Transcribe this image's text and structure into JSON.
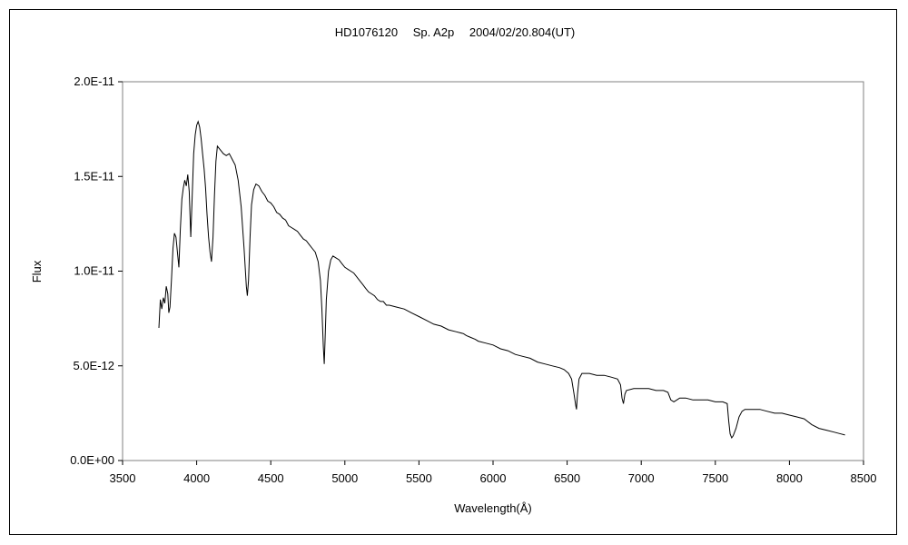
{
  "chart_data": {
    "type": "line",
    "title": "HD1076120　 Sp. A2p　 2004/02/20.804(UT)",
    "xlabel": "Wavelength(Å)",
    "ylabel": "Flux",
    "xlim": [
      3500,
      8500
    ],
    "ylim": [
      0,
      2e-11
    ],
    "x_ticks": [
      3500,
      4000,
      4500,
      5000,
      5500,
      6000,
      6500,
      7000,
      7500,
      8000,
      8500
    ],
    "x_tick_labels": [
      "3500",
      "4000",
      "4500",
      "5000",
      "5500",
      "6000",
      "6500",
      "7000",
      "7500",
      "8000",
      "8500"
    ],
    "y_ticks": [
      0,
      5e-12,
      1e-11,
      1.5e-11,
      2e-11
    ],
    "y_tick_labels": [
      "0.0E+00",
      "5.0E-12",
      "1.0E-11",
      "1.5E-11",
      "2.0E-11"
    ],
    "grid": false,
    "legend": "none",
    "series": [
      {
        "color": "#000000",
        "points": [
          [
            3745,
            7e-12
          ],
          [
            3755,
            8.5e-12
          ],
          [
            3765,
            8e-12
          ],
          [
            3775,
            8.6e-12
          ],
          [
            3785,
            8.3e-12
          ],
          [
            3795,
            9.2e-12
          ],
          [
            3805,
            8.8e-12
          ],
          [
            3812,
            7.8e-12
          ],
          [
            3820,
            8.1e-12
          ],
          [
            3830,
            9.6e-12
          ],
          [
            3840,
            1.12e-11
          ],
          [
            3850,
            1.2e-11
          ],
          [
            3860,
            1.18e-11
          ],
          [
            3870,
            1.1e-11
          ],
          [
            3880,
            1.02e-11
          ],
          [
            3890,
            1.22e-11
          ],
          [
            3900,
            1.38e-11
          ],
          [
            3910,
            1.44e-11
          ],
          [
            3920,
            1.48e-11
          ],
          [
            3930,
            1.45e-11
          ],
          [
            3940,
            1.51e-11
          ],
          [
            3950,
            1.42e-11
          ],
          [
            3960,
            1.18e-11
          ],
          [
            3970,
            1.4e-11
          ],
          [
            3980,
            1.62e-11
          ],
          [
            3990,
            1.72e-11
          ],
          [
            4000,
            1.77e-11
          ],
          [
            4010,
            1.79e-11
          ],
          [
            4020,
            1.76e-11
          ],
          [
            4030,
            1.7e-11
          ],
          [
            4040,
            1.62e-11
          ],
          [
            4050,
            1.54e-11
          ],
          [
            4060,
            1.44e-11
          ],
          [
            4070,
            1.3e-11
          ],
          [
            4080,
            1.18e-11
          ],
          [
            4090,
            1.1e-11
          ],
          [
            4100,
            1.05e-11
          ],
          [
            4110,
            1.18e-11
          ],
          [
            4120,
            1.4e-11
          ],
          [
            4130,
            1.58e-11
          ],
          [
            4140,
            1.66e-11
          ],
          [
            4160,
            1.64e-11
          ],
          [
            4180,
            1.62e-11
          ],
          [
            4200,
            1.61e-11
          ],
          [
            4220,
            1.62e-11
          ],
          [
            4240,
            1.59e-11
          ],
          [
            4260,
            1.56e-11
          ],
          [
            4280,
            1.48e-11
          ],
          [
            4300,
            1.34e-11
          ],
          [
            4320,
            1.12e-11
          ],
          [
            4335,
            9.2e-12
          ],
          [
            4342,
            8.7e-12
          ],
          [
            4350,
            9.5e-12
          ],
          [
            4360,
            1.18e-11
          ],
          [
            4370,
            1.35e-11
          ],
          [
            4385,
            1.43e-11
          ],
          [
            4400,
            1.46e-11
          ],
          [
            4420,
            1.45e-11
          ],
          [
            4440,
            1.42e-11
          ],
          [
            4460,
            1.4e-11
          ],
          [
            4480,
            1.37e-11
          ],
          [
            4500,
            1.36e-11
          ],
          [
            4520,
            1.34e-11
          ],
          [
            4540,
            1.31e-11
          ],
          [
            4560,
            1.3e-11
          ],
          [
            4580,
            1.28e-11
          ],
          [
            4600,
            1.27e-11
          ],
          [
            4620,
            1.24e-11
          ],
          [
            4640,
            1.23e-11
          ],
          [
            4660,
            1.22e-11
          ],
          [
            4680,
            1.21e-11
          ],
          [
            4700,
            1.19e-11
          ],
          [
            4720,
            1.17e-11
          ],
          [
            4740,
            1.16e-11
          ],
          [
            4760,
            1.14e-11
          ],
          [
            4780,
            1.12e-11
          ],
          [
            4800,
            1.1e-11
          ],
          [
            4820,
            1.05e-11
          ],
          [
            4835,
            9.5e-12
          ],
          [
            4845,
            8e-12
          ],
          [
            4855,
            6e-12
          ],
          [
            4861,
            5.1e-12
          ],
          [
            4866,
            6.2e-12
          ],
          [
            4875,
            8.5e-12
          ],
          [
            4890,
            1e-11
          ],
          [
            4905,
            1.06e-11
          ],
          [
            4920,
            1.08e-11
          ],
          [
            4940,
            1.07e-11
          ],
          [
            4960,
            1.06e-11
          ],
          [
            4980,
            1.04e-11
          ],
          [
            5000,
            1.02e-11
          ],
          [
            5020,
            1.01e-11
          ],
          [
            5040,
            1e-11
          ],
          [
            5060,
            9.9e-12
          ],
          [
            5080,
            9.7e-12
          ],
          [
            5100,
            9.5e-12
          ],
          [
            5120,
            9.3e-12
          ],
          [
            5140,
            9.1e-12
          ],
          [
            5160,
            8.9e-12
          ],
          [
            5180,
            8.8e-12
          ],
          [
            5200,
            8.7e-12
          ],
          [
            5220,
            8.5e-12
          ],
          [
            5240,
            8.4e-12
          ],
          [
            5260,
            8.4e-12
          ],
          [
            5280,
            8.2e-12
          ],
          [
            5300,
            8.2e-12
          ],
          [
            5350,
            8.1e-12
          ],
          [
            5400,
            8e-12
          ],
          [
            5450,
            7.8e-12
          ],
          [
            5500,
            7.6e-12
          ],
          [
            5550,
            7.4e-12
          ],
          [
            5600,
            7.2e-12
          ],
          [
            5650,
            7.1e-12
          ],
          [
            5700,
            6.9e-12
          ],
          [
            5750,
            6.8e-12
          ],
          [
            5800,
            6.7e-12
          ],
          [
            5820,
            6.6e-12
          ],
          [
            5850,
            6.5e-12
          ],
          [
            5880,
            6.4e-12
          ],
          [
            5900,
            6.3e-12
          ],
          [
            5950,
            6.2e-12
          ],
          [
            6000,
            6.1e-12
          ],
          [
            6050,
            5.9e-12
          ],
          [
            6100,
            5.8e-12
          ],
          [
            6150,
            5.6e-12
          ],
          [
            6200,
            5.5e-12
          ],
          [
            6250,
            5.4e-12
          ],
          [
            6300,
            5.2e-12
          ],
          [
            6350,
            5.1e-12
          ],
          [
            6400,
            5e-12
          ],
          [
            6450,
            4.9e-12
          ],
          [
            6480,
            4.8e-12
          ],
          [
            6510,
            4.6e-12
          ],
          [
            6530,
            4.3e-12
          ],
          [
            6545,
            3.6e-12
          ],
          [
            6558,
            2.9e-12
          ],
          [
            6563,
            2.7e-12
          ],
          [
            6570,
            3.5e-12
          ],
          [
            6580,
            4.3e-12
          ],
          [
            6600,
            4.6e-12
          ],
          [
            6650,
            4.6e-12
          ],
          [
            6700,
            4.5e-12
          ],
          [
            6750,
            4.5e-12
          ],
          [
            6800,
            4.4e-12
          ],
          [
            6840,
            4.3e-12
          ],
          [
            6860,
            4e-12
          ],
          [
            6870,
            3.3e-12
          ],
          [
            6880,
            3e-12
          ],
          [
            6890,
            3.5e-12
          ],
          [
            6900,
            3.7e-12
          ],
          [
            6950,
            3.8e-12
          ],
          [
            7000,
            3.8e-12
          ],
          [
            7050,
            3.8e-12
          ],
          [
            7100,
            3.7e-12
          ],
          [
            7150,
            3.7e-12
          ],
          [
            7180,
            3.6e-12
          ],
          [
            7200,
            3.2e-12
          ],
          [
            7220,
            3.1e-12
          ],
          [
            7240,
            3.2e-12
          ],
          [
            7260,
            3.3e-12
          ],
          [
            7300,
            3.3e-12
          ],
          [
            7350,
            3.2e-12
          ],
          [
            7400,
            3.2e-12
          ],
          [
            7450,
            3.2e-12
          ],
          [
            7500,
            3.1e-12
          ],
          [
            7550,
            3.1e-12
          ],
          [
            7580,
            3e-12
          ],
          [
            7590,
            2.1e-12
          ],
          [
            7600,
            1.4e-12
          ],
          [
            7610,
            1.2e-12
          ],
          [
            7620,
            1.3e-12
          ],
          [
            7640,
            1.7e-12
          ],
          [
            7660,
            2.3e-12
          ],
          [
            7680,
            2.6e-12
          ],
          [
            7700,
            2.7e-12
          ],
          [
            7750,
            2.7e-12
          ],
          [
            7800,
            2.7e-12
          ],
          [
            7850,
            2.6e-12
          ],
          [
            7900,
            2.5e-12
          ],
          [
            7950,
            2.5e-12
          ],
          [
            8000,
            2.4e-12
          ],
          [
            8050,
            2.3e-12
          ],
          [
            8100,
            2.2e-12
          ],
          [
            8150,
            1.9e-12
          ],
          [
            8200,
            1.7e-12
          ],
          [
            8250,
            1.6e-12
          ],
          [
            8300,
            1.5e-12
          ],
          [
            8350,
            1.4e-12
          ],
          [
            8375,
            1.35e-12
          ]
        ]
      }
    ]
  }
}
